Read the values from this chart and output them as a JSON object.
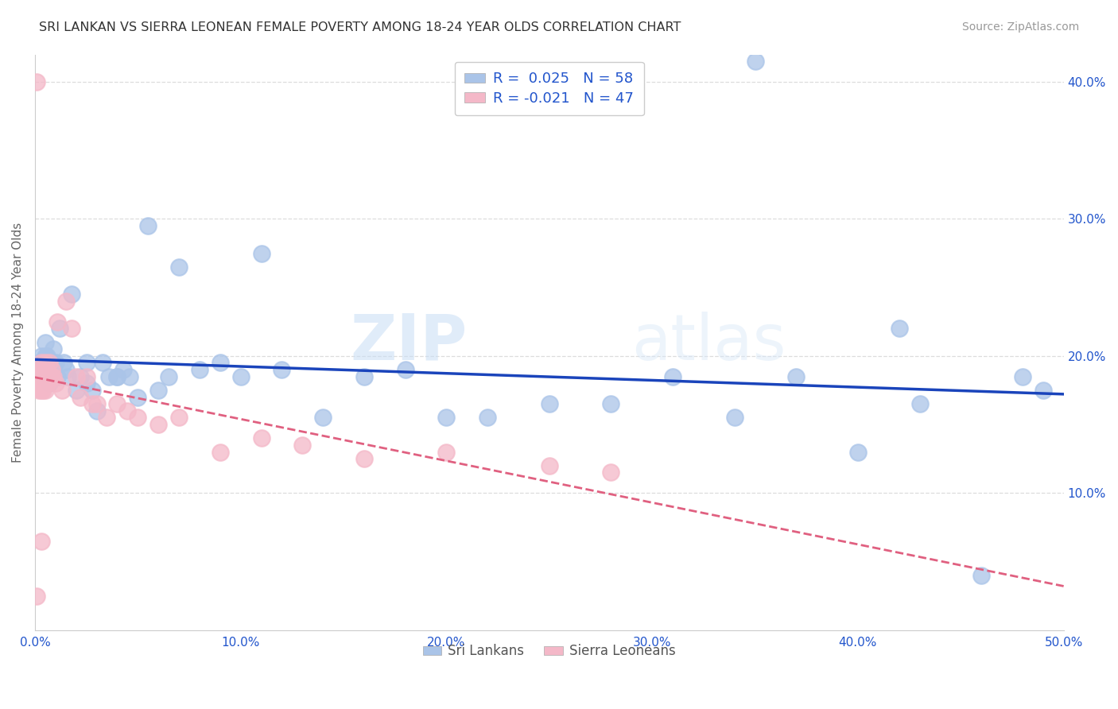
{
  "title": "SRI LANKAN VS SIERRA LEONEAN FEMALE POVERTY AMONG 18-24 YEAR OLDS CORRELATION CHART",
  "source": "Source: ZipAtlas.com",
  "ylabel": "Female Poverty Among 18-24 Year Olds",
  "xlim": [
    0,
    0.5
  ],
  "ylim": [
    0,
    0.42
  ],
  "yticks_right": [
    0.1,
    0.2,
    0.3,
    0.4
  ],
  "ytick_labels_right": [
    "10.0%",
    "20.0%",
    "30.0%",
    "40.0%"
  ],
  "background_color": "#ffffff",
  "watermark": "ZIPatlas",
  "sri_lankans_color": "#aac4e8",
  "sierra_leoneans_color": "#f4b8c8",
  "sri_lankans_R": 0.025,
  "sri_lankans_N": 58,
  "sierra_leoneans_R": -0.021,
  "sierra_leoneans_N": 47,
  "sri_lankans_line_color": "#1a44bb",
  "sierra_leoneans_line_color": "#e06080",
  "grid_color": "#dddddd",
  "axis_color": "#cccccc",
  "sri_lankans_x": [
    0.001,
    0.002,
    0.003,
    0.004,
    0.005,
    0.006,
    0.007,
    0.008,
    0.009,
    0.01,
    0.011,
    0.012,
    0.014,
    0.016,
    0.018,
    0.02,
    0.022,
    0.025,
    0.028,
    0.03,
    0.033,
    0.036,
    0.04,
    0.043,
    0.046,
    0.05,
    0.055,
    0.06,
    0.065,
    0.07,
    0.08,
    0.09,
    0.1,
    0.11,
    0.12,
    0.14,
    0.16,
    0.18,
    0.2,
    0.22,
    0.25,
    0.28,
    0.31,
    0.34,
    0.37,
    0.4,
    0.43,
    0.46,
    0.48,
    0.49,
    0.005,
    0.007,
    0.009,
    0.015,
    0.025,
    0.04,
    0.35,
    0.42
  ],
  "sri_lankans_y": [
    0.19,
    0.195,
    0.2,
    0.185,
    0.21,
    0.2,
    0.195,
    0.19,
    0.205,
    0.195,
    0.185,
    0.22,
    0.195,
    0.185,
    0.245,
    0.175,
    0.185,
    0.18,
    0.175,
    0.16,
    0.195,
    0.185,
    0.185,
    0.19,
    0.185,
    0.17,
    0.295,
    0.175,
    0.185,
    0.265,
    0.19,
    0.195,
    0.185,
    0.275,
    0.19,
    0.155,
    0.185,
    0.19,
    0.155,
    0.155,
    0.165,
    0.165,
    0.185,
    0.155,
    0.185,
    0.13,
    0.165,
    0.04,
    0.185,
    0.175,
    0.2,
    0.18,
    0.195,
    0.19,
    0.195,
    0.185,
    0.415,
    0.22
  ],
  "sierra_leoneans_x": [
    0.001,
    0.001,
    0.002,
    0.002,
    0.002,
    0.002,
    0.003,
    0.003,
    0.003,
    0.003,
    0.003,
    0.004,
    0.004,
    0.004,
    0.005,
    0.005,
    0.005,
    0.006,
    0.006,
    0.007,
    0.007,
    0.008,
    0.008,
    0.009,
    0.01,
    0.011,
    0.013,
    0.015,
    0.018,
    0.02,
    0.022,
    0.025,
    0.028,
    0.03,
    0.035,
    0.04,
    0.045,
    0.05,
    0.06,
    0.07,
    0.09,
    0.11,
    0.13,
    0.16,
    0.2,
    0.25,
    0.28
  ],
  "sierra_leoneans_y": [
    0.4,
    0.025,
    0.18,
    0.19,
    0.185,
    0.175,
    0.195,
    0.185,
    0.18,
    0.175,
    0.065,
    0.19,
    0.185,
    0.175,
    0.195,
    0.185,
    0.175,
    0.19,
    0.18,
    0.195,
    0.185,
    0.19,
    0.185,
    0.185,
    0.18,
    0.225,
    0.175,
    0.24,
    0.22,
    0.185,
    0.17,
    0.185,
    0.165,
    0.165,
    0.155,
    0.165,
    0.16,
    0.155,
    0.15,
    0.155,
    0.13,
    0.14,
    0.135,
    0.125,
    0.13,
    0.12,
    0.115
  ]
}
